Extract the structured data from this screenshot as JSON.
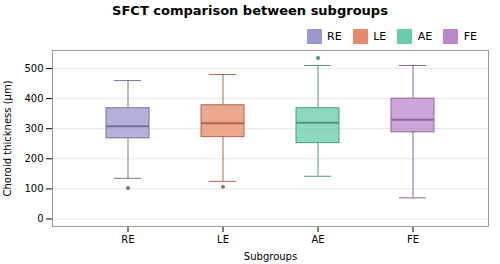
{
  "chart_data": {
    "type": "box",
    "title": "SFCT comparison between subgroups",
    "xlabel": "Subgroups",
    "ylabel": "Choroid thickness (μm)",
    "categories": [
      "RE",
      "LE",
      "AE",
      "FE"
    ],
    "boxes": [
      {
        "whislo": 135,
        "q1": 268,
        "med": 308,
        "q3": 368,
        "whishi": 460,
        "fliers": [
          103
        ]
      },
      {
        "whislo": 125,
        "q1": 272,
        "med": 318,
        "q3": 378,
        "whishi": 480,
        "fliers": [
          107
        ]
      },
      {
        "whislo": 142,
        "q1": 252,
        "med": 320,
        "q3": 368,
        "whishi": 510,
        "fliers": [
          535
        ]
      },
      {
        "whislo": 70,
        "q1": 288,
        "med": 330,
        "q3": 400,
        "whishi": 510,
        "fliers": []
      }
    ],
    "colors": [
      "#9999cc",
      "#e8896a",
      "#66ccaa",
      "#bb88cc"
    ],
    "ylim": [
      -25,
      560
    ],
    "yticks": [
      0,
      100,
      200,
      300,
      400,
      500
    ],
    "grid": true,
    "legend": "upper right"
  }
}
